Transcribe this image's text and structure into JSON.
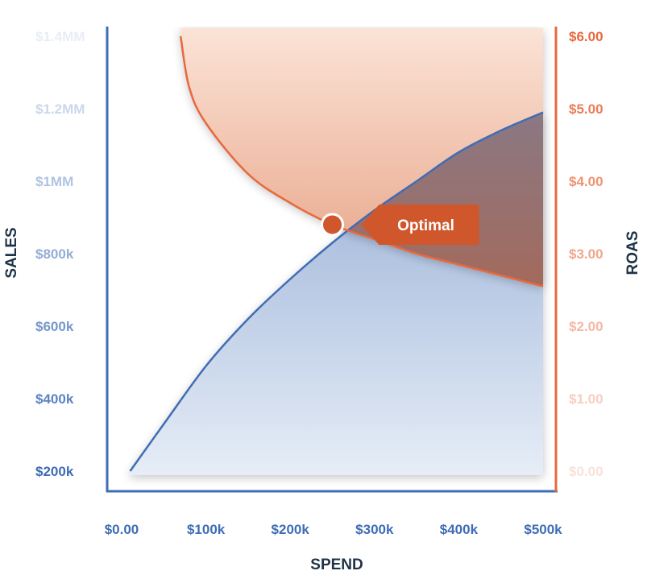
{
  "chart_data": {
    "type": "area",
    "title": "",
    "xlabel": "SPEND",
    "ylabel_left": "SALES",
    "ylabel_right": "ROAS",
    "x_ticks": [
      "$0.00",
      "$100k",
      "$200k",
      "$300k",
      "$400k",
      "$500k"
    ],
    "xlim": [
      0,
      500000
    ],
    "y_left_ticks": [
      {
        "value": 200000,
        "label": "$200k"
      },
      {
        "value": 400000,
        "label": "$400k"
      },
      {
        "value": 600000,
        "label": "$600k"
      },
      {
        "value": 800000,
        "label": "$800k"
      },
      {
        "value": 1000000,
        "label": "$1MM"
      },
      {
        "value": 1200000,
        "label": "$1.2MM"
      },
      {
        "value": 1400000,
        "label": "$1.4MM"
      }
    ],
    "ylim_left": [
      200000,
      1400000
    ],
    "y_right_ticks": [
      {
        "value": 0,
        "label": "$0.00"
      },
      {
        "value": 1,
        "label": "$1.00"
      },
      {
        "value": 2,
        "label": "$2.00"
      },
      {
        "value": 3,
        "label": "$3.00"
      },
      {
        "value": 4,
        "label": "$4.00"
      },
      {
        "value": 5,
        "label": "$5.00"
      },
      {
        "value": 6,
        "label": "$6.00"
      }
    ],
    "ylim_right": [
      0,
      6
    ],
    "series": [
      {
        "axis": "left",
        "color": "#3f6db5",
        "x": [
          10000,
          50000,
          100000,
          150000,
          200000,
          250000,
          300000,
          350000,
          400000,
          450000,
          500000
        ],
        "y": [
          200000,
          330000,
          490000,
          620000,
          730000,
          830000,
          920000,
          1000000,
          1080000,
          1140000,
          1190000
        ]
      },
      {
        "axis": "right",
        "color": "#e8693e",
        "x": [
          70000,
          80000,
          100000,
          150000,
          200000,
          250000,
          300000,
          350000,
          400000,
          450000,
          500000
        ],
        "y": [
          6.0,
          5.3,
          4.8,
          4.1,
          3.7,
          3.4,
          3.2,
          3.0,
          2.85,
          2.7,
          2.55
        ]
      }
    ],
    "annotations": [
      {
        "text": "Optimal",
        "x": 250000,
        "y_right": 3.4,
        "y_left": 835000
      }
    ],
    "grid": false,
    "legend": "none",
    "colors": {
      "sales": "#3f6db5",
      "roas": "#e8693e",
      "axis_text": "#1f3347",
      "callout": "#d0562c"
    }
  }
}
